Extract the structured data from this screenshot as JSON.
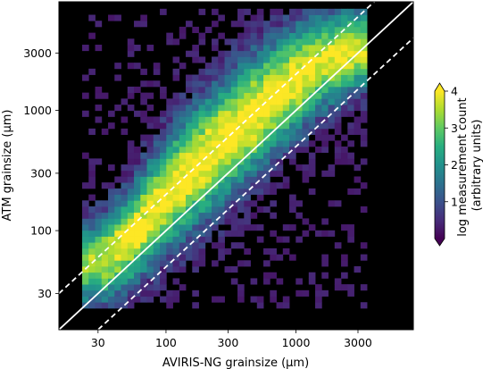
{
  "chart_data": {
    "type": "heatmap",
    "title": "",
    "xlabel": "AVIRIS-NG grainsize (µm)",
    "ylabel": "ATM grainsize (µm)",
    "x_scale": "log",
    "y_scale": "log",
    "xlim": [
      15,
      8000
    ],
    "ylim": [
      15,
      8000
    ],
    "x_ticks": [
      30,
      100,
      300,
      1000,
      3000
    ],
    "x_tick_labels": [
      "30",
      "100",
      "300",
      "1000",
      "3000"
    ],
    "y_ticks": [
      30,
      100,
      300,
      1000,
      3000
    ],
    "y_tick_labels": [
      "30",
      "100",
      "300",
      "1000",
      "3000"
    ],
    "background_color": "#000000",
    "colormap": "viridis",
    "grid": false,
    "reference_lines": [
      {
        "name": "1:1",
        "style": "solid",
        "color": "#ffffff",
        "factor": 1.0
      },
      {
        "name": "upper",
        "style": "dashed",
        "color": "#ffffff",
        "factor": 2.0
      },
      {
        "name": "lower",
        "style": "dashed",
        "color": "#ffffff",
        "factor": 0.5
      }
    ],
    "density_model": {
      "ridge": [
        [
          22,
          50
        ],
        [
          35,
          60
        ],
        [
          55,
          90
        ],
        [
          100,
          200
        ],
        [
          200,
          400
        ],
        [
          400,
          800
        ],
        [
          800,
          1500
        ],
        [
          1500,
          2500
        ],
        [
          3000,
          3200
        ]
      ],
      "peak_value": 4.2,
      "hotspot": {
        "x": 55,
        "y": 95,
        "value": 4.0
      }
    },
    "colorbar": {
      "label": "log measurement count\n(arbitrary units)",
      "min": 0,
      "max": 4,
      "ticks": [
        1,
        2,
        3,
        4
      ],
      "tick_labels": [
        "1",
        "2",
        "3",
        "4"
      ],
      "extend": "both"
    }
  }
}
